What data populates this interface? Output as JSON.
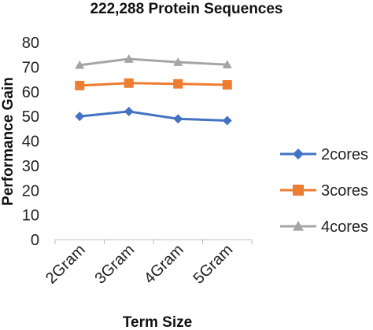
{
  "chart_data": {
    "type": "line",
    "title": "222,288 Protein Sequences",
    "xlabel": "Term Size",
    "ylabel": "Performance Gain",
    "categories": [
      "2Gram",
      "3Gram",
      "4Gram",
      "5Gram"
    ],
    "ylim": [
      0,
      80
    ],
    "yticks": [
      0,
      10,
      20,
      30,
      40,
      50,
      60,
      70,
      80
    ],
    "grid": false,
    "legend_position": "right",
    "series": [
      {
        "name": "2cores",
        "values": [
          50,
          52,
          49,
          48.3
        ],
        "color": "#4472C4",
        "marker": "diamond"
      },
      {
        "name": "3cores",
        "values": [
          62.5,
          63.5,
          63.2,
          62.8
        ],
        "color": "#ED7D31",
        "marker": "square"
      },
      {
        "name": "4cores",
        "values": [
          70.8,
          73.3,
          72,
          71
        ],
        "color": "#A5A5A5",
        "marker": "triangle"
      }
    ]
  }
}
